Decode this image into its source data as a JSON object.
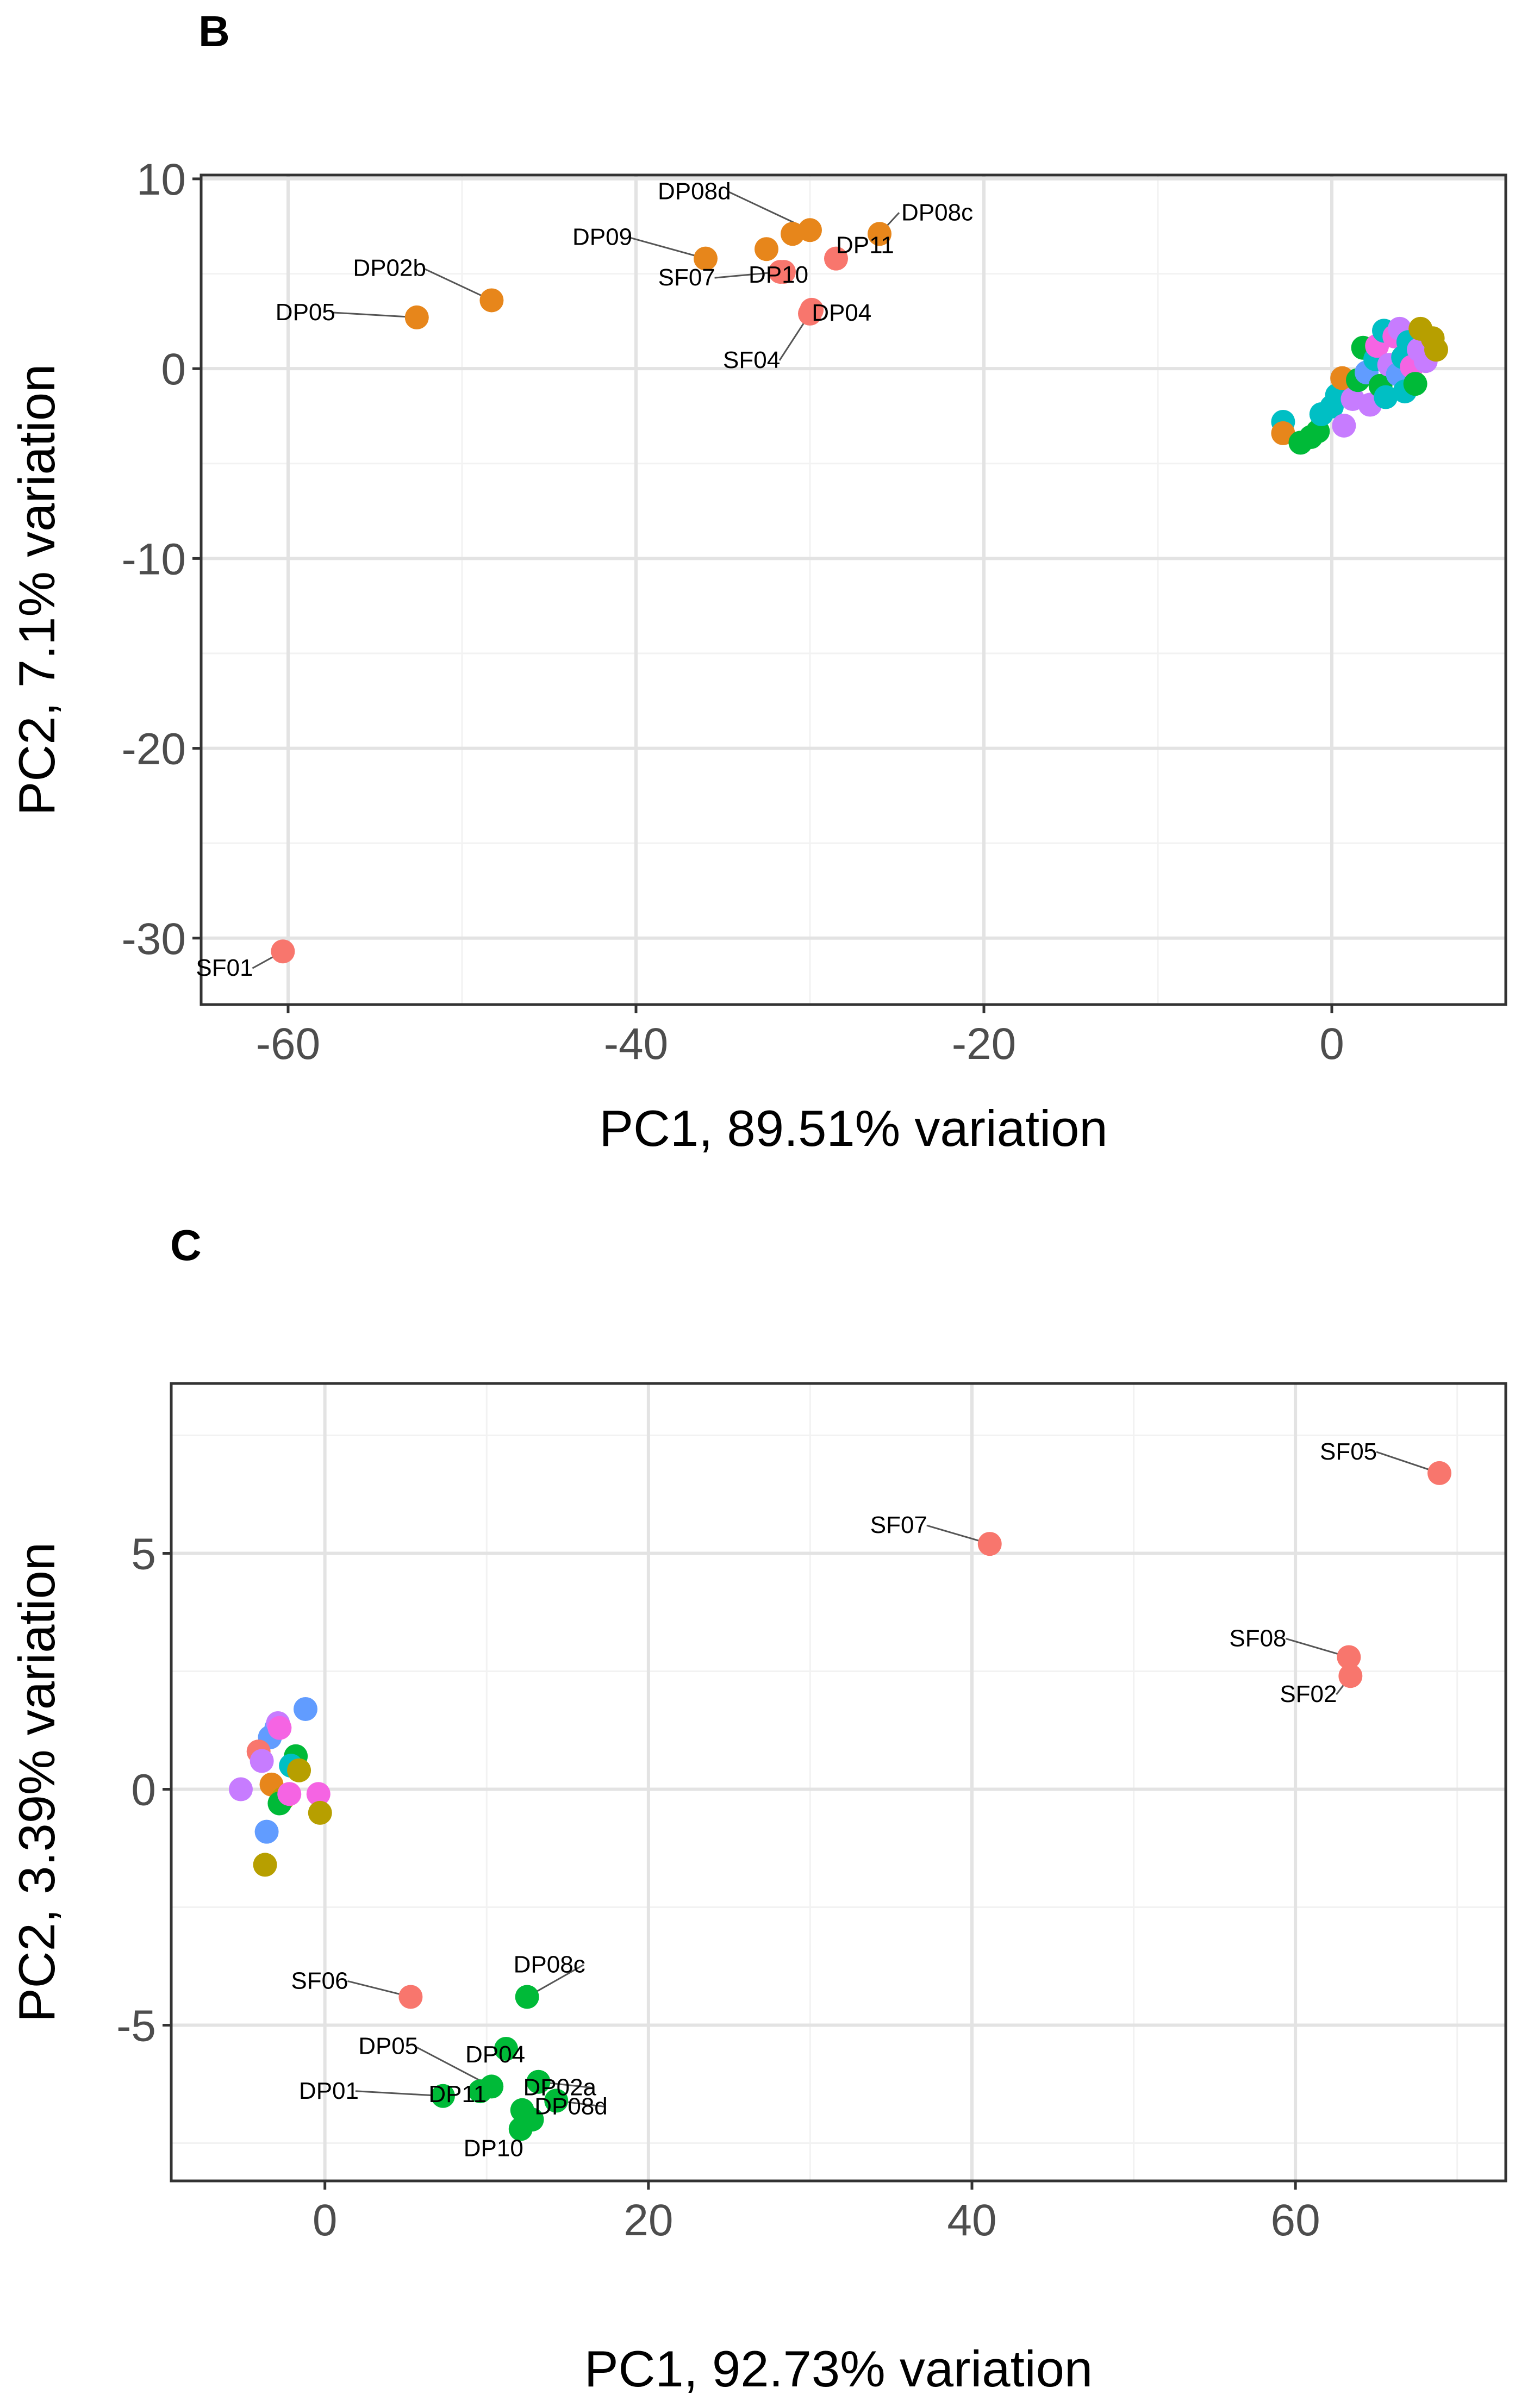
{
  "chart_data": [
    {
      "panel": "B",
      "type": "scatter",
      "xlabel": "PC1, 89.51% variation",
      "ylabel": "PC2, 7.1% variation",
      "xlim": [
        -65,
        10
      ],
      "ylim": [
        -33.5,
        10.2
      ],
      "x_ticks": [
        -60,
        -40,
        -20,
        0
      ],
      "y_ticks": [
        10,
        0,
        -10,
        -20,
        -30
      ],
      "grid": true,
      "legend": "none",
      "points": [
        {
          "x": -60.3,
          "y": -30.7,
          "color": "#F8766D",
          "label": "SF01"
        },
        {
          "x": -52.6,
          "y": 2.7,
          "color": "#E7861B",
          "label": "DP05"
        },
        {
          "x": -48.3,
          "y": 3.6,
          "color": "#E7861B",
          "label": "DP02b"
        },
        {
          "x": -36.0,
          "y": 5.8,
          "color": "#E7861B",
          "label": "DP09"
        },
        {
          "x": -32.5,
          "y": 6.3,
          "color": "#E7861B",
          "label": ""
        },
        {
          "x": -30.0,
          "y": 7.3,
          "color": "#E7861B",
          "label": "DP08d"
        },
        {
          "x": -31.0,
          "y": 7.1,
          "color": "#E7861B",
          "label": ""
        },
        {
          "x": -26.0,
          "y": 7.1,
          "color": "#E7861B",
          "label": "DP08c"
        },
        {
          "x": -28.5,
          "y": 5.8,
          "color": "#F8766D",
          "label": "DP11"
        },
        {
          "x": -31.5,
          "y": 5.1,
          "color": "#F8766D",
          "label": "DP10"
        },
        {
          "x": -29.9,
          "y": 3.1,
          "color": "#F8766D",
          "label": "DP04"
        },
        {
          "x": -31.7,
          "y": 5.1,
          "color": "#F8766D",
          "label": "SF07"
        },
        {
          "x": -30.0,
          "y": 2.9,
          "color": "#F8766D",
          "label": "SF04"
        },
        {
          "x": -2.8,
          "y": -2.8,
          "color": "#00BFC4",
          "label": ""
        },
        {
          "x": -2.8,
          "y": -3.4,
          "color": "#E7861B",
          "label": ""
        },
        {
          "x": -1.8,
          "y": -3.9,
          "color": "#00BA38",
          "label": ""
        },
        {
          "x": -1.2,
          "y": -3.6,
          "color": "#00BA38",
          "label": ""
        },
        {
          "x": -0.8,
          "y": -3.3,
          "color": "#00BA38",
          "label": ""
        },
        {
          "x": -0.6,
          "y": -2.4,
          "color": "#00BFC4",
          "label": ""
        },
        {
          "x": 0.0,
          "y": -2.0,
          "color": "#00BFC4",
          "label": ""
        },
        {
          "x": 0.3,
          "y": -1.4,
          "color": "#00BFC4",
          "label": ""
        },
        {
          "x": 0.6,
          "y": -0.5,
          "color": "#E7861B",
          "label": ""
        },
        {
          "x": 0.7,
          "y": -3.0,
          "color": "#C77CFF",
          "label": ""
        },
        {
          "x": 1.2,
          "y": -1.6,
          "color": "#C77CFF",
          "label": ""
        },
        {
          "x": 1.5,
          "y": -0.6,
          "color": "#00BA38",
          "label": ""
        },
        {
          "x": 1.8,
          "y": 1.1,
          "color": "#00BA38",
          "label": ""
        },
        {
          "x": 2.0,
          "y": -0.2,
          "color": "#619CFF",
          "label": ""
        },
        {
          "x": 2.2,
          "y": -1.9,
          "color": "#C77CFF",
          "label": ""
        },
        {
          "x": 2.5,
          "y": 0.5,
          "color": "#00BFC4",
          "label": ""
        },
        {
          "x": 2.6,
          "y": 1.2,
          "color": "#F564E3",
          "label": ""
        },
        {
          "x": 2.8,
          "y": -0.9,
          "color": "#00BA38",
          "label": ""
        },
        {
          "x": 3.0,
          "y": 2.0,
          "color": "#00BFC4",
          "label": ""
        },
        {
          "x": 3.1,
          "y": -1.5,
          "color": "#00BFC4",
          "label": ""
        },
        {
          "x": 3.3,
          "y": 0.2,
          "color": "#C77CFF",
          "label": ""
        },
        {
          "x": 3.6,
          "y": 1.7,
          "color": "#F564E3",
          "label": ""
        },
        {
          "x": 3.8,
          "y": -0.3,
          "color": "#619CFF",
          "label": ""
        },
        {
          "x": 3.9,
          "y": 2.1,
          "color": "#C77CFF",
          "label": ""
        },
        {
          "x": 4.1,
          "y": 0.6,
          "color": "#00BFC4",
          "label": ""
        },
        {
          "x": 4.2,
          "y": -1.2,
          "color": "#00BFC4",
          "label": ""
        },
        {
          "x": 4.4,
          "y": 1.4,
          "color": "#00BFC4",
          "label": ""
        },
        {
          "x": 4.6,
          "y": 0.1,
          "color": "#F564E3",
          "label": ""
        },
        {
          "x": 4.8,
          "y": -0.8,
          "color": "#00BA38",
          "label": ""
        },
        {
          "x": 5.0,
          "y": 1.0,
          "color": "#C77CFF",
          "label": ""
        },
        {
          "x": 5.4,
          "y": 0.4,
          "color": "#C77CFF",
          "label": ""
        },
        {
          "x": 5.1,
          "y": 2.1,
          "color": "#B79F00",
          "label": ""
        },
        {
          "x": 5.8,
          "y": 1.6,
          "color": "#B79F00",
          "label": ""
        },
        {
          "x": 6.0,
          "y": 1.0,
          "color": "#B79F00",
          "label": ""
        }
      ]
    },
    {
      "panel": "C",
      "type": "scatter",
      "xlabel": "PC1, 92.73% variation",
      "ylabel": "PC2, 3.39% variation",
      "xlim": [
        -9.5,
        73
      ],
      "ylim": [
        -8.3,
        8.6
      ],
      "x_ticks": [
        0,
        20,
        40,
        60
      ],
      "y_ticks": [
        5,
        0,
        -5
      ],
      "grid": true,
      "legend": "none",
      "points": [
        {
          "x": 68.9,
          "y": 6.7,
          "color": "#F8766D",
          "label": "SF05"
        },
        {
          "x": 41.1,
          "y": 5.2,
          "color": "#F8766D",
          "label": "SF07"
        },
        {
          "x": 63.3,
          "y": 2.8,
          "color": "#F8766D",
          "label": "SF08"
        },
        {
          "x": 63.4,
          "y": 2.4,
          "color": "#F8766D",
          "label": "SF02"
        },
        {
          "x": 5.3,
          "y": -4.4,
          "color": "#F8766D",
          "label": "SF06"
        },
        {
          "x": 12.5,
          "y": -4.4,
          "color": "#00BA38",
          "label": "DP08c"
        },
        {
          "x": 11.2,
          "y": -5.5,
          "color": "#00BA38",
          "label": "DP04"
        },
        {
          "x": 10.3,
          "y": -6.3,
          "color": "#00BA38",
          "label": "DP05"
        },
        {
          "x": 13.2,
          "y": -6.2,
          "color": "#00BA38",
          "label": "DP02a"
        },
        {
          "x": 7.3,
          "y": -6.5,
          "color": "#00BA38",
          "label": "DP01"
        },
        {
          "x": 9.6,
          "y": -6.4,
          "color": "#00BA38",
          "label": "DP11"
        },
        {
          "x": 14.3,
          "y": -6.6,
          "color": "#00BA38",
          "label": "DP08d"
        },
        {
          "x": 12.1,
          "y": -7.2,
          "color": "#00BA38",
          "label": "DP10"
        },
        {
          "x": 12.2,
          "y": -6.8,
          "color": "#00BA38",
          "label": ""
        },
        {
          "x": 12.8,
          "y": -7.0,
          "color": "#00BA38",
          "label": ""
        },
        {
          "x": -1.2,
          "y": 1.7,
          "color": "#619CFF",
          "label": ""
        },
        {
          "x": -3.0,
          "y": 1.3,
          "color": "#619CFF",
          "label": ""
        },
        {
          "x": -3.4,
          "y": 1.1,
          "color": "#619CFF",
          "label": ""
        },
        {
          "x": -2.9,
          "y": 1.4,
          "color": "#C77CFF",
          "label": ""
        },
        {
          "x": -2.8,
          "y": 1.3,
          "color": "#F564E3",
          "label": ""
        },
        {
          "x": -4.1,
          "y": 0.8,
          "color": "#F8766D",
          "label": ""
        },
        {
          "x": -3.9,
          "y": 0.6,
          "color": "#C77CFF",
          "label": ""
        },
        {
          "x": -1.8,
          "y": 0.7,
          "color": "#00BA38",
          "label": ""
        },
        {
          "x": -2.1,
          "y": 0.5,
          "color": "#00BFC4",
          "label": ""
        },
        {
          "x": -1.6,
          "y": 0.4,
          "color": "#B79F00",
          "label": ""
        },
        {
          "x": -3.3,
          "y": 0.1,
          "color": "#E7861B",
          "label": ""
        },
        {
          "x": -2.6,
          "y": -0.2,
          "color": "#B79F00",
          "label": ""
        },
        {
          "x": -2.8,
          "y": -0.3,
          "color": "#00BA38",
          "label": ""
        },
        {
          "x": -2.2,
          "y": -0.1,
          "color": "#F564E3",
          "label": ""
        },
        {
          "x": -5.2,
          "y": 0.0,
          "color": "#C77CFF",
          "label": ""
        },
        {
          "x": -0.4,
          "y": -0.1,
          "color": "#F564E3",
          "label": ""
        },
        {
          "x": -0.3,
          "y": -0.5,
          "color": "#B79F00",
          "label": ""
        },
        {
          "x": -3.6,
          "y": -0.9,
          "color": "#619CFF",
          "label": ""
        },
        {
          "x": -3.7,
          "y": -1.6,
          "color": "#B79F00",
          "label": ""
        }
      ]
    }
  ]
}
